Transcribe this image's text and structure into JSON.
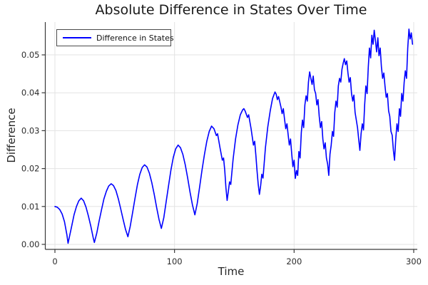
{
  "chart_data": {
    "type": "line",
    "title": "Absolute Difference in States Over Time",
    "xlabel": "Time",
    "ylabel": "Difference",
    "xlim": [
      -8.05,
      303.0
    ],
    "ylim": [
      -0.00132,
      0.05865
    ],
    "x_ticks": [
      0,
      100,
      200,
      300
    ],
    "x_tick_labels": [
      "0",
      "100",
      "200",
      "300"
    ],
    "y_ticks": [
      0.0,
      0.01,
      0.02,
      0.03,
      0.04,
      0.05
    ],
    "y_tick_labels": [
      "0.00",
      "0.01",
      "0.02",
      "0.03",
      "0.04",
      "0.05"
    ],
    "grid": true,
    "legend_position": "top-left",
    "colors": {
      "series": "#0000ff",
      "grid": "#e3e3e3",
      "spine": "#3a3a3a",
      "tick_text": "#2c2c2c"
    },
    "series": [
      {
        "name": "Difference in States",
        "color": "#0000ff",
        "points": [
          [
            0,
            0.01
          ],
          [
            2,
            0.0098
          ],
          [
            4,
            0.0092
          ],
          [
            6,
            0.008
          ],
          [
            8,
            0.006
          ],
          [
            10,
            0.0025
          ],
          [
            11,
            0.0003
          ],
          [
            12,
            0.0018
          ],
          [
            14,
            0.0048
          ],
          [
            16,
            0.0078
          ],
          [
            18,
            0.01
          ],
          [
            20,
            0.0115
          ],
          [
            22,
            0.0122
          ],
          [
            24,
            0.0115
          ],
          [
            26,
            0.0098
          ],
          [
            28,
            0.0075
          ],
          [
            30,
            0.0048
          ],
          [
            32,
            0.0018
          ],
          [
            33,
            0.0005
          ],
          [
            35,
            0.003
          ],
          [
            37,
            0.0062
          ],
          [
            39,
            0.0092
          ],
          [
            41,
            0.012
          ],
          [
            43,
            0.014
          ],
          [
            45,
            0.0154
          ],
          [
            47,
            0.016
          ],
          [
            49,
            0.0155
          ],
          [
            51,
            0.0142
          ],
          [
            53,
            0.012
          ],
          [
            55,
            0.0094
          ],
          [
            57,
            0.0066
          ],
          [
            59,
            0.004
          ],
          [
            61,
            0.002
          ],
          [
            63,
            0.0048
          ],
          [
            65,
            0.0085
          ],
          [
            67,
            0.0122
          ],
          [
            69,
            0.0158
          ],
          [
            71,
            0.0185
          ],
          [
            73,
            0.0203
          ],
          [
            75,
            0.021
          ],
          [
            77,
            0.0204
          ],
          [
            79,
            0.0188
          ],
          [
            81,
            0.0163
          ],
          [
            83,
            0.0132
          ],
          [
            85,
            0.0098
          ],
          [
            87,
            0.0066
          ],
          [
            89,
            0.0042
          ],
          [
            91,
            0.007
          ],
          [
            93,
            0.0112
          ],
          [
            95,
            0.0155
          ],
          [
            97,
            0.0196
          ],
          [
            99,
            0.023
          ],
          [
            101,
            0.0252
          ],
          [
            103,
            0.0262
          ],
          [
            105,
            0.0255
          ],
          [
            107,
            0.0237
          ],
          [
            109,
            0.021
          ],
          [
            111,
            0.0175
          ],
          [
            113,
            0.0138
          ],
          [
            115,
            0.0104
          ],
          [
            117,
            0.0078
          ],
          [
            119,
            0.0108
          ],
          [
            121,
            0.0152
          ],
          [
            123,
            0.0196
          ],
          [
            125,
            0.0237
          ],
          [
            127,
            0.0272
          ],
          [
            129,
            0.0298
          ],
          [
            131,
            0.0312
          ],
          [
            133,
            0.0305
          ],
          [
            135,
            0.0287
          ],
          [
            136,
            0.0292
          ],
          [
            138,
            0.0255
          ],
          [
            140,
            0.0222
          ],
          [
            141,
            0.0228
          ],
          [
            142,
            0.0195
          ],
          [
            143,
            0.015
          ],
          [
            144,
            0.0116
          ],
          [
            145,
            0.014
          ],
          [
            146,
            0.0165
          ],
          [
            147,
            0.0158
          ],
          [
            149,
            0.0225
          ],
          [
            151,
            0.0278
          ],
          [
            153,
            0.0315
          ],
          [
            155,
            0.0342
          ],
          [
            157,
            0.0355
          ],
          [
            158,
            0.0358
          ],
          [
            159,
            0.0352
          ],
          [
            161,
            0.0335
          ],
          [
            162,
            0.0342
          ],
          [
            164,
            0.0305
          ],
          [
            166,
            0.0262
          ],
          [
            167,
            0.0272
          ],
          [
            168,
            0.0235
          ],
          [
            169,
            0.0195
          ],
          [
            170,
            0.0158
          ],
          [
            171,
            0.0132
          ],
          [
            172,
            0.0155
          ],
          [
            173,
            0.0185
          ],
          [
            174,
            0.0175
          ],
          [
            176,
            0.0255
          ],
          [
            178,
            0.031
          ],
          [
            180,
            0.0352
          ],
          [
            182,
            0.0385
          ],
          [
            184,
            0.0402
          ],
          [
            185,
            0.0396
          ],
          [
            186,
            0.0382
          ],
          [
            187,
            0.039
          ],
          [
            189,
            0.0362
          ],
          [
            190,
            0.0345
          ],
          [
            191,
            0.0358
          ],
          [
            192,
            0.033
          ],
          [
            193,
            0.0305
          ],
          [
            194,
            0.0318
          ],
          [
            195,
            0.029
          ],
          [
            196,
            0.0262
          ],
          [
            197,
            0.0278
          ],
          [
            198,
            0.0238
          ],
          [
            199,
            0.0205
          ],
          [
            200,
            0.0222
          ],
          [
            201,
            0.0174
          ],
          [
            202,
            0.0195
          ],
          [
            203,
            0.0182
          ],
          [
            204,
            0.0245
          ],
          [
            205,
            0.0228
          ],
          [
            206,
            0.0295
          ],
          [
            207,
            0.0328
          ],
          [
            208,
            0.0308
          ],
          [
            209,
            0.0368
          ],
          [
            210,
            0.0392
          ],
          [
            211,
            0.0378
          ],
          [
            212,
            0.0428
          ],
          [
            213,
            0.0455
          ],
          [
            214,
            0.0438
          ],
          [
            215,
            0.0422
          ],
          [
            216,
            0.0444
          ],
          [
            217,
            0.0408
          ],
          [
            218,
            0.0398
          ],
          [
            219,
            0.0368
          ],
          [
            220,
            0.0382
          ],
          [
            221,
            0.0338
          ],
          [
            222,
            0.0308
          ],
          [
            223,
            0.0324
          ],
          [
            224,
            0.0278
          ],
          [
            225,
            0.0252
          ],
          [
            226,
            0.0268
          ],
          [
            227,
            0.0228
          ],
          [
            228,
            0.0212
          ],
          [
            229,
            0.0182
          ],
          [
            230,
            0.0238
          ],
          [
            231,
            0.0262
          ],
          [
            232,
            0.0298
          ],
          [
            233,
            0.0285
          ],
          [
            234,
            0.0348
          ],
          [
            235,
            0.0378
          ],
          [
            236,
            0.0362
          ],
          [
            237,
            0.0418
          ],
          [
            238,
            0.0438
          ],
          [
            239,
            0.0428
          ],
          [
            240,
            0.0462
          ],
          [
            241,
            0.0478
          ],
          [
            242,
            0.049
          ],
          [
            243,
            0.0474
          ],
          [
            244,
            0.0484
          ],
          [
            245,
            0.0452
          ],
          [
            246,
            0.0428
          ],
          [
            247,
            0.044
          ],
          [
            248,
            0.0398
          ],
          [
            249,
            0.0378
          ],
          [
            250,
            0.0394
          ],
          [
            251,
            0.0348
          ],
          [
            252,
            0.0328
          ],
          [
            253,
            0.0308
          ],
          [
            254,
            0.0278
          ],
          [
            255,
            0.0248
          ],
          [
            256,
            0.0292
          ],
          [
            257,
            0.0318
          ],
          [
            258,
            0.0302
          ],
          [
            259,
            0.0368
          ],
          [
            260,
            0.0418
          ],
          [
            261,
            0.0398
          ],
          [
            262,
            0.0468
          ],
          [
            263,
            0.0518
          ],
          [
            264,
            0.0492
          ],
          [
            265,
            0.0552
          ],
          [
            266,
            0.0528
          ],
          [
            267,
            0.0565
          ],
          [
            268,
            0.0538
          ],
          [
            269,
            0.0508
          ],
          [
            270,
            0.0545
          ],
          [
            271,
            0.0498
          ],
          [
            272,
            0.0518
          ],
          [
            273,
            0.0468
          ],
          [
            274,
            0.0438
          ],
          [
            275,
            0.0452
          ],
          [
            276,
            0.0418
          ],
          [
            277,
            0.0388
          ],
          [
            278,
            0.0398
          ],
          [
            279,
            0.0352
          ],
          [
            280,
            0.0338
          ],
          [
            281,
            0.0298
          ],
          [
            282,
            0.0288
          ],
          [
            283,
            0.0248
          ],
          [
            284,
            0.0222
          ],
          [
            285,
            0.0278
          ],
          [
            286,
            0.0318
          ],
          [
            287,
            0.0298
          ],
          [
            288,
            0.0358
          ],
          [
            289,
            0.0338
          ],
          [
            290,
            0.0398
          ],
          [
            291,
            0.0378
          ],
          [
            292,
            0.0428
          ],
          [
            293,
            0.0458
          ],
          [
            294,
            0.0438
          ],
          [
            295,
            0.0518
          ],
          [
            296,
            0.0568
          ],
          [
            297,
            0.0542
          ],
          [
            298,
            0.0558
          ],
          [
            299,
            0.0528
          ]
        ]
      }
    ]
  }
}
